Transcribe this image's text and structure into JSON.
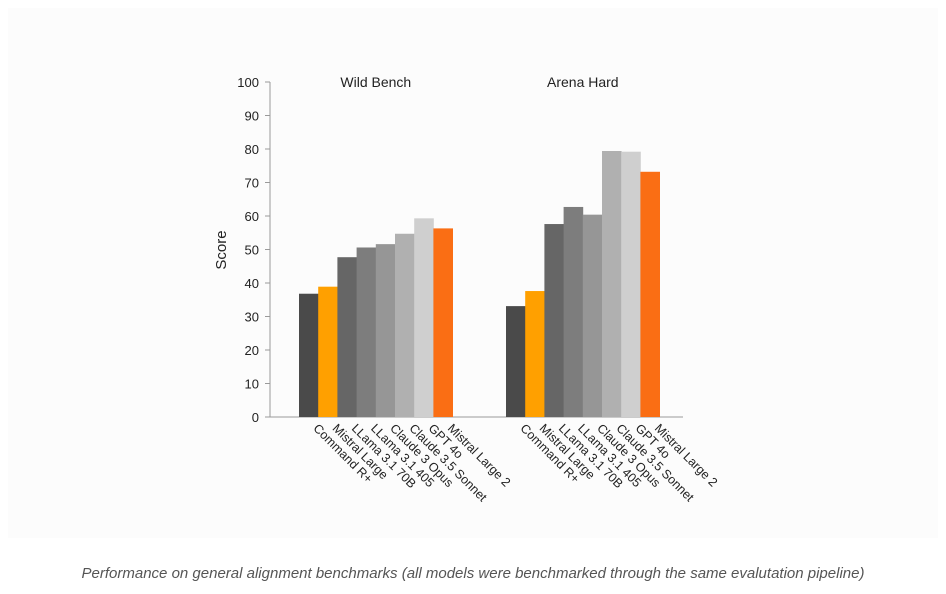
{
  "caption": "Performance on general alignment benchmarks (all models were benchmarked through the same evalutation pipeline)",
  "chart_data": {
    "type": "bar",
    "ylabel": "Score",
    "ylim": [
      0,
      100
    ],
    "yticks": [
      0,
      10,
      20,
      30,
      40,
      50,
      60,
      70,
      80,
      90,
      100
    ],
    "grid": false,
    "models": [
      "Command R+",
      "Mistral Large",
      "LLama 3.1 70B",
      "LLama 3.1 405",
      "Claude 3 Opus",
      "Claude 3.5 Sonnet",
      "GPT 4o",
      "Mistral Large 2"
    ],
    "colors": [
      "#4a4a4a",
      "#ffa000",
      "#666666",
      "#7d7d7d",
      "#969696",
      "#b0b0b0",
      "#cfcfcf",
      "#fa6e14"
    ],
    "groups": [
      {
        "title": "Wild Bench",
        "values": [
          36.8,
          38.9,
          47.7,
          50.6,
          51.6,
          54.7,
          59.3,
          56.3
        ]
      },
      {
        "title": "Arena Hard",
        "values": [
          33.1,
          37.6,
          57.6,
          62.7,
          60.4,
          79.4,
          79.2,
          73.2
        ]
      }
    ]
  }
}
